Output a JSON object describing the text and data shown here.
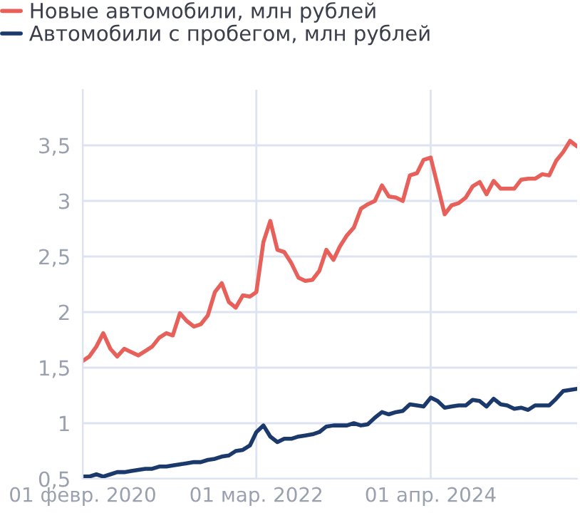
{
  "chart_data": {
    "type": "line",
    "x": [
      "2020-02",
      "2020-03",
      "2020-04",
      "2020-05",
      "2020-06",
      "2020-07",
      "2020-08",
      "2020-09",
      "2020-10",
      "2020-11",
      "2020-12",
      "2021-01",
      "2021-02",
      "2021-03",
      "2021-04",
      "2021-05",
      "2021-06",
      "2021-07",
      "2021-08",
      "2021-09",
      "2021-10",
      "2021-11",
      "2021-12",
      "2022-01",
      "2022-02",
      "2022-03",
      "2022-04",
      "2022-05",
      "2022-06",
      "2022-07",
      "2022-08",
      "2022-09",
      "2022-10",
      "2022-11",
      "2022-12",
      "2023-01",
      "2023-02",
      "2023-03",
      "2023-04",
      "2023-05",
      "2023-06",
      "2023-07",
      "2023-08",
      "2023-09",
      "2023-10",
      "2023-11",
      "2023-12",
      "2024-01",
      "2024-02",
      "2024-03",
      "2024-04",
      "2024-05",
      "2024-06",
      "2024-07",
      "2024-08",
      "2024-09",
      "2024-10",
      "2024-11",
      "2024-12",
      "2025-01",
      "2025-02",
      "2025-03",
      "2025-04",
      "2025-05",
      "2025-06",
      "2025-07",
      "2025-08",
      "2025-09",
      "2025-10",
      "2025-11",
      "2025-12",
      "2026-01"
    ],
    "series": [
      {
        "name": "Новые автомобили, млн рублей",
        "color": "#e8605a",
        "values": [
          1.56,
          1.6,
          1.69,
          1.81,
          1.67,
          1.6,
          1.67,
          1.64,
          1.61,
          1.65,
          1.69,
          1.77,
          1.81,
          1.79,
          1.99,
          1.92,
          1.87,
          1.89,
          1.97,
          2.18,
          2.26,
          2.09,
          2.04,
          2.15,
          2.14,
          2.18,
          2.63,
          2.82,
          2.56,
          2.54,
          2.44,
          2.31,
          2.28,
          2.29,
          2.37,
          2.56,
          2.47,
          2.59,
          2.69,
          2.76,
          2.93,
          2.97,
          3.0,
          3.14,
          3.04,
          3.03,
          3.0,
          3.23,
          3.25,
          3.37,
          3.39,
          3.14,
          2.88,
          2.96,
          2.98,
          3.03,
          3.13,
          3.17,
          3.06,
          3.18,
          3.11,
          3.11,
          3.11,
          3.19,
          3.2,
          3.2,
          3.24,
          3.23,
          3.36,
          3.44,
          3.54,
          3.49
        ]
      },
      {
        "name": "Автомобили с пробегом, млн рублей",
        "color": "#1b3a6b",
        "values": [
          0.52,
          0.52,
          0.54,
          0.52,
          0.54,
          0.56,
          0.56,
          0.57,
          0.58,
          0.59,
          0.59,
          0.61,
          0.61,
          0.62,
          0.63,
          0.64,
          0.65,
          0.65,
          0.67,
          0.68,
          0.7,
          0.71,
          0.75,
          0.76,
          0.8,
          0.92,
          0.98,
          0.88,
          0.83,
          0.86,
          0.86,
          0.88,
          0.89,
          0.9,
          0.92,
          0.97,
          0.98,
          0.98,
          0.98,
          1.0,
          0.98,
          0.99,
          1.05,
          1.1,
          1.08,
          1.1,
          1.11,
          1.17,
          1.16,
          1.15,
          1.23,
          1.2,
          1.14,
          1.15,
          1.16,
          1.16,
          1.21,
          1.2,
          1.15,
          1.22,
          1.17,
          1.16,
          1.13,
          1.14,
          1.12,
          1.16,
          1.16,
          1.16,
          1.22,
          1.29,
          1.3,
          1.31
        ]
      }
    ],
    "xlim": [
      "2020-02",
      "2026-01"
    ],
    "xticks": [
      {
        "value": "2020-02-01",
        "label": "01 февр. 2020"
      },
      {
        "value": "2022-03-01",
        "label": "01 мар. 2022"
      },
      {
        "value": "2024-04-01",
        "label": "01 апр. 2024"
      }
    ],
    "ylim": [
      0.5,
      4.0
    ],
    "yticks": [
      {
        "value": 0.5,
        "label": "0,5"
      },
      1,
      {
        "value": 1.5,
        "label": "1,5"
      },
      2,
      {
        "value": 2.5,
        "label": "2,5"
      },
      3,
      {
        "value": 3.5,
        "label": "3,5"
      }
    ],
    "grid": true,
    "legend": "top left",
    "marker": "none",
    "line_style": "solid"
  }
}
